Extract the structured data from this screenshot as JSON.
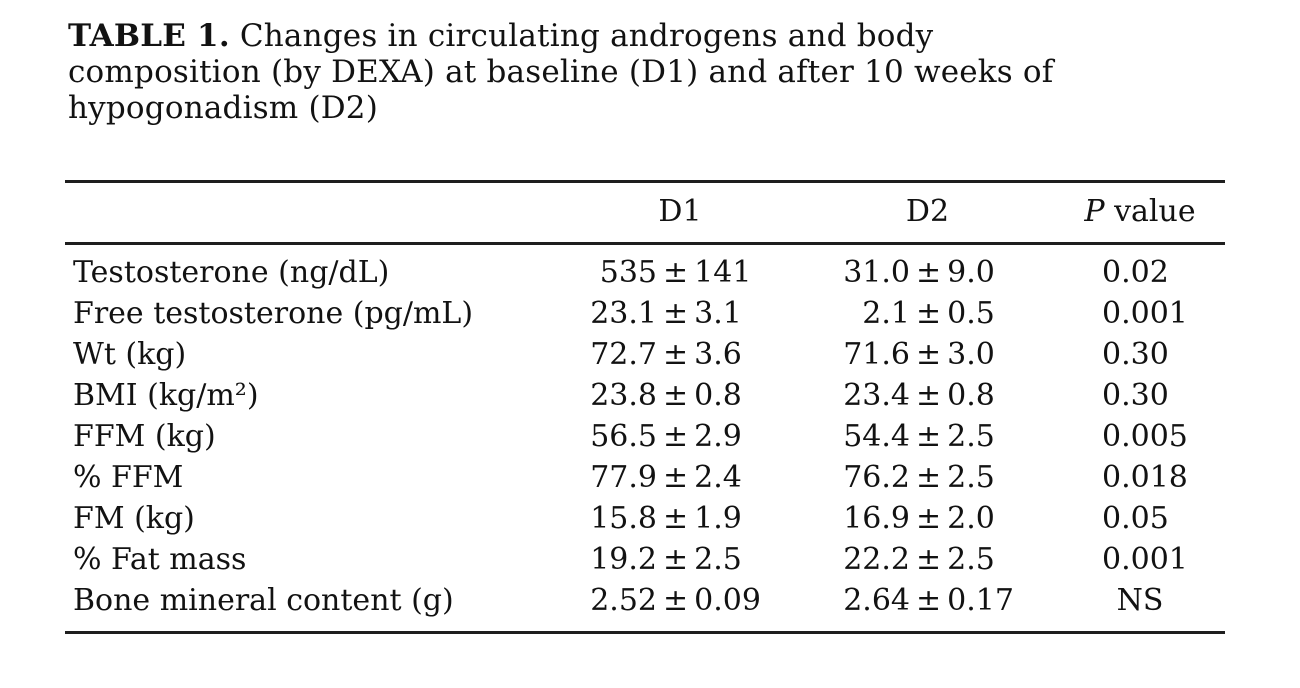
{
  "caption": {
    "label": "TABLE 1.",
    "line1_rest": "Changes in circulating androgens and body",
    "line2": "composition (by DEXA) at baseline (D1) and after 10 weeks of",
    "line3": "hypogonadism (D2)"
  },
  "table": {
    "pm": "±",
    "columns": {
      "d1": "D1",
      "d2": "D2",
      "p_italic": "P",
      "p_rest": " value"
    },
    "rows": [
      {
        "label": "Testosterone (ng/dL)",
        "d1m": "535",
        "d1s": "141",
        "d2m": "31.0",
        "d2s": "9.0",
        "p": "0.02"
      },
      {
        "label": "Free testosterone (pg/mL)",
        "d1m": "23.1",
        "d1s": "3.1",
        "d2m": "2.1",
        "d2s": "0.5",
        "p": "0.001"
      },
      {
        "label": "Wt (kg)",
        "d1m": "72.7",
        "d1s": "3.6",
        "d2m": "71.6",
        "d2s": "3.0",
        "p": "0.30"
      },
      {
        "label": "BMI (kg/m²)",
        "d1m": "23.8",
        "d1s": "0.8",
        "d2m": "23.4",
        "d2s": "0.8",
        "p": "0.30"
      },
      {
        "label": "FFM (kg)",
        "d1m": "56.5",
        "d1s": "2.9",
        "d2m": "54.4",
        "d2s": "2.5",
        "p": "0.005"
      },
      {
        "label": "% FFM",
        "d1m": "77.9",
        "d1s": "2.4",
        "d2m": "76.2",
        "d2s": "2.5",
        "p": "0.018"
      },
      {
        "label": "FM (kg)",
        "d1m": "15.8",
        "d1s": "1.9",
        "d2m": "16.9",
        "d2s": "2.0",
        "p": "0.05"
      },
      {
        "label": "% Fat mass",
        "d1m": "19.2",
        "d1s": "2.5",
        "d2m": "22.2",
        "d2s": "2.5",
        "p": "0.001"
      },
      {
        "label": "Bone mineral content (g)",
        "d1m": "2.52",
        "d1s": "0.09",
        "d2m": "2.64",
        "d2s": "0.17",
        "p": "NS"
      }
    ]
  },
  "colors": {
    "background": "#ffffff",
    "text": "#121212",
    "rule": "#1e1e1e"
  }
}
